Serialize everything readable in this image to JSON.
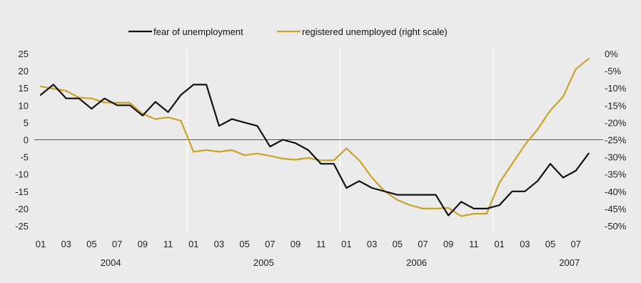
{
  "chart_data": {
    "type": "line",
    "title": "",
    "legend_position": "top-center",
    "grid": "vertical separators between years, horizontal zero line",
    "x_tick_labels": [
      "01",
      "03",
      "05",
      "07",
      "09",
      "11",
      "01",
      "03",
      "05",
      "07",
      "09",
      "11",
      "01",
      "03",
      "05",
      "07",
      "09",
      "11",
      "01",
      "03",
      "05",
      "07"
    ],
    "years": [
      "2004",
      "2005",
      "2006",
      "2007"
    ],
    "x_start": "2004-01",
    "left_axis": {
      "ticks": [
        "25",
        "20",
        "15",
        "10",
        "5",
        "0",
        "-5",
        "-10",
        "-15",
        "-20",
        "-25"
      ],
      "ylim": [
        -25,
        25
      ]
    },
    "right_axis": {
      "ticks": [
        "0%",
        "-5%",
        "-10%",
        "-15%",
        "-20%",
        "-25%",
        "-30%",
        "-35%",
        "-40%",
        "-45%",
        "-50%"
      ],
      "ylim": [
        -50,
        0
      ],
      "unit": "%"
    },
    "series": [
      {
        "name": "fear of unemployment",
        "axis": "left",
        "color": "#111111",
        "values": [
          13,
          16,
          12,
          12,
          9,
          12,
          10,
          10,
          7,
          11,
          8,
          13,
          16,
          16,
          4,
          6,
          5,
          4,
          -2,
          0,
          -1,
          -3,
          -7,
          -7,
          -14,
          -12,
          -14,
          -15,
          -16,
          -16,
          -16,
          -16,
          -22,
          -18,
          -20,
          -20,
          -19,
          -15,
          -15,
          -12,
          -7,
          -11,
          -9,
          -4
        ]
      },
      {
        "name": "registered unemployed (right scale)",
        "axis": "right",
        "color": "#c9a227",
        "values": [
          -9.5,
          -10.2,
          -10.8,
          -12.8,
          -13,
          -14.2,
          -14.3,
          -14.3,
          -17.5,
          -19,
          -18.5,
          -19.5,
          -28.5,
          -28,
          -28.5,
          -28,
          -29.5,
          -29,
          -29.7,
          -30.5,
          -30.8,
          -30.3,
          -31,
          -31,
          -27.5,
          -31,
          -36,
          -40,
          -42.5,
          -44,
          -45,
          -45,
          -44.8,
          -47.2,
          -46.5,
          -46.5,
          -37.5,
          -32,
          -26.5,
          -22,
          -16.5,
          -12.5,
          -4.5,
          -1.5
        ]
      }
    ]
  }
}
